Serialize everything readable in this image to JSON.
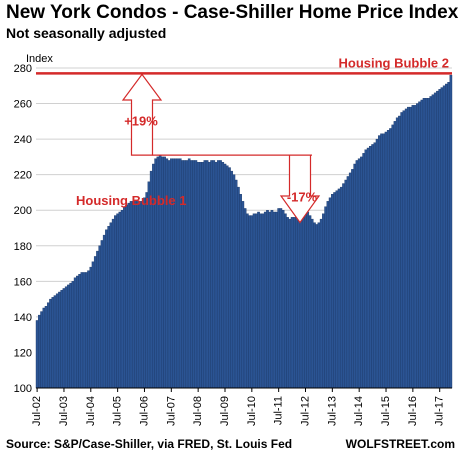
{
  "chart_data": {
    "type": "bar",
    "title": "New York Condos - Case-Shiller Home Price Index",
    "subtitle": "Not seasonally adjusted",
    "ylabel": "Index",
    "xlabel": "",
    "ylim": [
      100,
      280
    ],
    "y_ticks": [
      100,
      120,
      140,
      160,
      180,
      200,
      220,
      240,
      260,
      280
    ],
    "grid": true,
    "x_tick_labels": [
      "Jul-02",
      "Jul-03",
      "Jul-04",
      "Jul-05",
      "Jul-06",
      "Jul-07",
      "Jul-08",
      "Jul-09",
      "Jul-10",
      "Jul-11",
      "Jul-12",
      "Jul-13",
      "Jul-14",
      "Jul-15",
      "Jul-16",
      "Jul-17"
    ],
    "series": [
      {
        "values": [
          138,
          141,
          143,
          145,
          146,
          148,
          150,
          151,
          152,
          153,
          154,
          155,
          156,
          157,
          158,
          159,
          160,
          162,
          163,
          164,
          165,
          165,
          165,
          166,
          168,
          171,
          174,
          177,
          180,
          183,
          186,
          189,
          191,
          193,
          195,
          197,
          198,
          199,
          200,
          202,
          203,
          204,
          205,
          205,
          205,
          205,
          205,
          205,
          207,
          210,
          216,
          222,
          226,
          229,
          230,
          231,
          230,
          230,
          229,
          228,
          229,
          229,
          229,
          229,
          229,
          228,
          228,
          228,
          229,
          228,
          228,
          228,
          227,
          227,
          227,
          228,
          228,
          227,
          228,
          228,
          227,
          228,
          228,
          227,
          226,
          225,
          224,
          222,
          220,
          217,
          213,
          209,
          205,
          201,
          198,
          197,
          197,
          198,
          198,
          199,
          198,
          198,
          199,
          200,
          199,
          200,
          199,
          199,
          201,
          201,
          200,
          198,
          196,
          195,
          196,
          196,
          197,
          198,
          200,
          200,
          200,
          199,
          197,
          195,
          193,
          192,
          193,
          195,
          198,
          202,
          205,
          207,
          209,
          210,
          211,
          212,
          213,
          215,
          217,
          219,
          221,
          223,
          226,
          228,
          229,
          230,
          232,
          234,
          235,
          236,
          237,
          238,
          240,
          242,
          243,
          243,
          244,
          245,
          246,
          248,
          250,
          252,
          253,
          255,
          256,
          257,
          258,
          258,
          259,
          259,
          260,
          261,
          262,
          263,
          263,
          263,
          264,
          265,
          266,
          267,
          268,
          269,
          270,
          271,
          272,
          276
        ]
      }
    ],
    "reference_line": {
      "value": 277,
      "label": "Housing Bubble 2",
      "color": "#d42a2a"
    },
    "annotations": {
      "bubble1_label": "Housing Bubble 1",
      "rise_label": "+19%",
      "drop_label": "-17%"
    },
    "colors": {
      "bar": "#2b5493",
      "bar_edge": "#1c3a6b",
      "accent": "#d42a2a",
      "grid": "#d0d0d0"
    }
  },
  "footer": {
    "source": "Source: S&P/Case-Shiller, via FRED,  St. Louis Fed",
    "brand": "WOLFSTREET.com"
  }
}
